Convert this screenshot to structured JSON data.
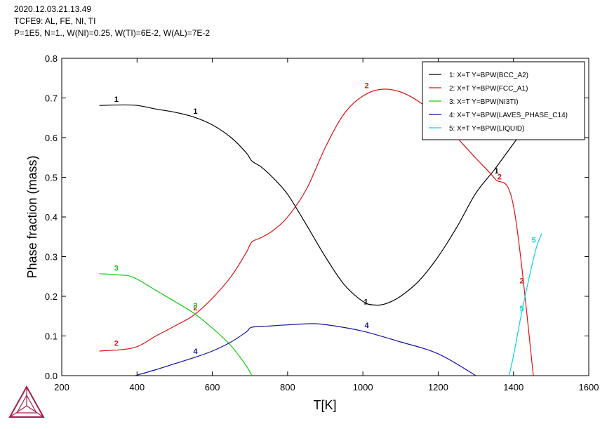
{
  "header": {
    "line1": "2020.12.03.21.13.49",
    "line2": "TCFE9: AL, FE, NI, TI",
    "line3": "P=1E5, N=1., W(NI)=0.25, W(TI)=6E-2, W(AL)=7E-2"
  },
  "logo": {
    "icon": "thermo-calc-triangle-icon",
    "color": "#a0204a"
  },
  "chart_data": {
    "type": "line",
    "xlabel": "T[K]",
    "ylabel": "Phase fraction (mass)",
    "xlim": [
      200,
      1600
    ],
    "ylim": [
      0,
      0.8
    ],
    "xticks": [
      200,
      400,
      600,
      800,
      1000,
      1200,
      1400,
      1600
    ],
    "yticks": [
      0.0,
      0.1,
      0.2,
      0.3,
      0.4,
      0.5,
      0.6,
      0.7,
      0.8
    ],
    "ytick_labels": [
      "0.0",
      "0.1",
      "0.2",
      "0.3",
      "0.4",
      "0.5",
      "0.6",
      "0.7",
      "0.8"
    ],
    "legend_position": "top-right",
    "series": [
      {
        "id": "1",
        "name": "1:  X=T  Y=BPW(BCC_A2)",
        "color": "#000000",
        "points": [
          [
            300,
            0.681
          ],
          [
            390,
            0.682
          ],
          [
            450,
            0.672
          ],
          [
            500,
            0.664
          ],
          [
            550,
            0.652
          ],
          [
            600,
            0.632
          ],
          [
            650,
            0.6
          ],
          [
            690,
            0.562
          ],
          [
            705,
            0.541
          ],
          [
            730,
            0.526
          ],
          [
            760,
            0.5
          ],
          [
            800,
            0.457
          ],
          [
            850,
            0.38
          ],
          [
            900,
            0.3
          ],
          [
            950,
            0.23
          ],
          [
            1000,
            0.187
          ],
          [
            1030,
            0.178
          ],
          [
            1060,
            0.181
          ],
          [
            1100,
            0.2
          ],
          [
            1150,
            0.24
          ],
          [
            1200,
            0.3
          ],
          [
            1250,
            0.375
          ],
          [
            1300,
            0.46
          ],
          [
            1350,
            0.52
          ],
          [
            1400,
            0.585
          ],
          [
            1420,
            0.61
          ]
        ],
        "labels": [
          [
            345,
            0.69
          ],
          [
            555,
            0.66
          ],
          [
            1008,
            0.18
          ],
          [
            1355,
            0.51
          ]
        ]
      },
      {
        "id": "2",
        "name": "2:  X=T  Y=BPW(FCC_A1)",
        "color": "#e01010",
        "points": [
          [
            300,
            0.062
          ],
          [
            390,
            0.07
          ],
          [
            450,
            0.1
          ],
          [
            500,
            0.125
          ],
          [
            550,
            0.152
          ],
          [
            600,
            0.195
          ],
          [
            650,
            0.25
          ],
          [
            690,
            0.31
          ],
          [
            705,
            0.337
          ],
          [
            730,
            0.348
          ],
          [
            760,
            0.365
          ],
          [
            800,
            0.4
          ],
          [
            850,
            0.47
          ],
          [
            900,
            0.575
          ],
          [
            950,
            0.66
          ],
          [
            1000,
            0.705
          ],
          [
            1050,
            0.722
          ],
          [
            1100,
            0.715
          ],
          [
            1150,
            0.69
          ],
          [
            1200,
            0.652
          ],
          [
            1250,
            0.6
          ],
          [
            1300,
            0.548
          ],
          [
            1350,
            0.497
          ],
          [
            1400,
            0.428
          ],
          [
            1453,
            0.0
          ]
        ],
        "labels": [
          [
            345,
            0.075
          ],
          [
            555,
            0.165
          ],
          [
            1010,
            0.725
          ],
          [
            1363,
            0.495
          ],
          [
            1422,
            0.233
          ]
        ]
      },
      {
        "id": "3",
        "name": "3:  X=T  Y=BPW(NI3TI)",
        "color": "#11cc11",
        "points": [
          [
            300,
            0.257
          ],
          [
            350,
            0.254
          ],
          [
            390,
            0.248
          ],
          [
            450,
            0.215
          ],
          [
            500,
            0.187
          ],
          [
            550,
            0.158
          ],
          [
            600,
            0.12
          ],
          [
            650,
            0.075
          ],
          [
            690,
            0.025
          ],
          [
            705,
            0.0
          ]
        ],
        "labels": [
          [
            345,
            0.265
          ],
          [
            555,
            0.17
          ]
        ]
      },
      {
        "id": "4",
        "name": "4:  X=T  Y=BPW(LAVES_PHASE_C14)",
        "color": "#1010a0",
        "points": [
          [
            395,
            0.0
          ],
          [
            450,
            0.015
          ],
          [
            500,
            0.03
          ],
          [
            550,
            0.045
          ],
          [
            600,
            0.062
          ],
          [
            650,
            0.085
          ],
          [
            690,
            0.11
          ],
          [
            705,
            0.122
          ],
          [
            750,
            0.125
          ],
          [
            800,
            0.128
          ],
          [
            870,
            0.131
          ],
          [
            920,
            0.126
          ],
          [
            1000,
            0.112
          ],
          [
            1100,
            0.085
          ],
          [
            1200,
            0.055
          ],
          [
            1300,
            0.0
          ]
        ],
        "labels": [
          [
            555,
            0.055
          ],
          [
            1010,
            0.12
          ]
        ]
      },
      {
        "id": "5",
        "name": "5:  X=T  Y=BPW(LIQUID)",
        "color": "#00d8e0",
        "points": [
          [
            1388,
            0.0
          ],
          [
            1400,
            0.05
          ],
          [
            1420,
            0.15
          ],
          [
            1440,
            0.24
          ],
          [
            1460,
            0.32
          ],
          [
            1475,
            0.358
          ]
        ],
        "labels": [
          [
            1422,
            0.163
          ],
          [
            1454,
            0.335
          ]
        ]
      }
    ]
  }
}
